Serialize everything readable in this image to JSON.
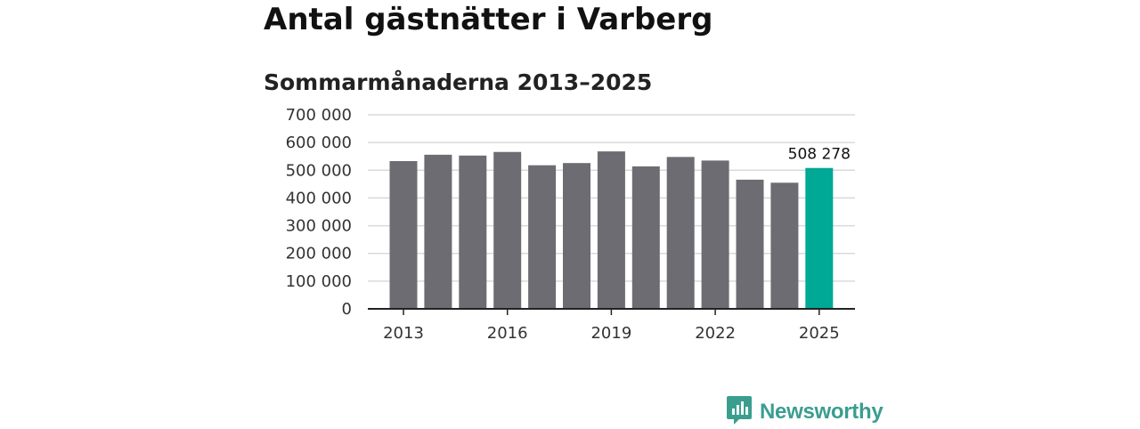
{
  "colors": {
    "bar": "#6d6c72",
    "highlight": "#00a896",
    "grid": "#d9d9d9",
    "axis": "#222222",
    "brand": "#3a9e8f"
  },
  "brand": {
    "name": "Newsworthy",
    "icon": "newsworthy-logo-icon"
  },
  "chart_data": {
    "type": "bar",
    "title": "Antal gästnätter i Varberg",
    "subtitle": "Sommarmånaderna 2013–2025",
    "categories": [
      "2013",
      "2014",
      "2015",
      "2016",
      "2017",
      "2018",
      "2019",
      "2020",
      "2021",
      "2022",
      "2023",
      "2024",
      "2025"
    ],
    "values": [
      533000,
      556000,
      553000,
      566000,
      518000,
      526000,
      568000,
      514000,
      548000,
      535000,
      466000,
      455000,
      508278
    ],
    "highlight_index": 12,
    "data_labels": [
      {
        "index": 12,
        "text": "508 278"
      }
    ],
    "ylim": [
      0,
      700000
    ],
    "yticks": [
      0,
      100000,
      200000,
      300000,
      400000,
      500000,
      600000,
      700000
    ],
    "ytick_labels": [
      "0",
      "100 000",
      "200 000",
      "300 000",
      "400 000",
      "500 000",
      "600 000",
      "700 000"
    ],
    "xtick_labels": [
      "2013",
      "2016",
      "2019",
      "2022",
      "2025"
    ],
    "grid": true,
    "legend": "none"
  }
}
